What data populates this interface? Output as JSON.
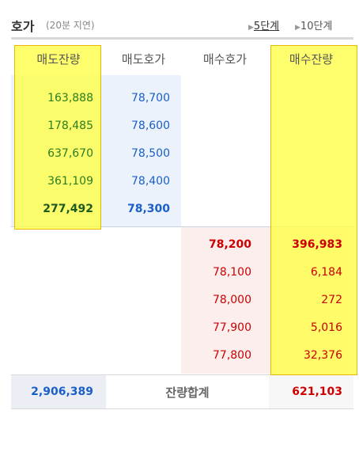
{
  "header": {
    "title": "호가",
    "delay": "(20분 지연)",
    "links": [
      "5단계",
      "10단계"
    ]
  },
  "table": {
    "columns": [
      "매도잔량",
      "매도호가",
      "매수호가",
      "매수잔량"
    ],
    "asks": [
      {
        "volume": "163,888",
        "price": "78,700"
      },
      {
        "volume": "178,485",
        "price": "78,600"
      },
      {
        "volume": "637,670",
        "price": "78,500"
      },
      {
        "volume": "361,109",
        "price": "78,400"
      },
      {
        "volume": "277,492",
        "price": "78,300"
      }
    ],
    "bids": [
      {
        "price": "78,200",
        "volume": "396,983"
      },
      {
        "price": "78,100",
        "volume": "6,184"
      },
      {
        "price": "78,000",
        "volume": "272"
      },
      {
        "price": "77,900",
        "volume": "5,016"
      },
      {
        "price": "77,800",
        "volume": "32,376"
      }
    ],
    "total": {
      "ask": "2,906,389",
      "label": "잔량합계",
      "bid": "621,103"
    }
  }
}
